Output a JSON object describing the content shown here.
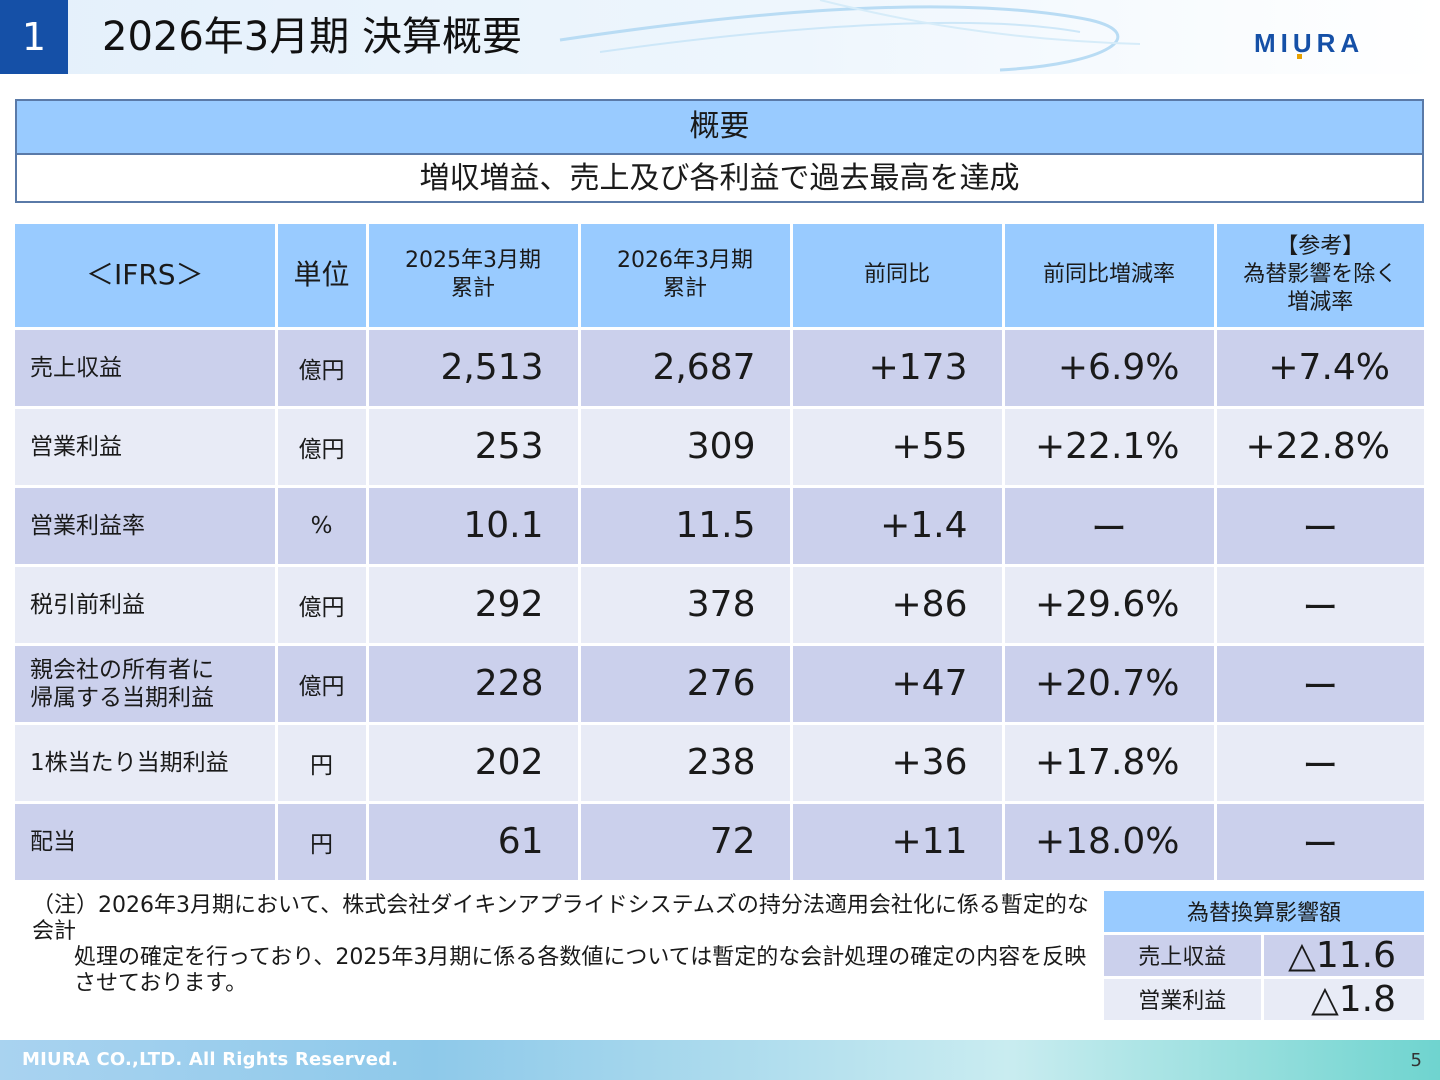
{
  "header": {
    "section_number": "1",
    "title": "2026年3月期  決算概要",
    "logo_text": "MIURA",
    "brand_color": "#1550a7"
  },
  "summary": {
    "heading": "概要",
    "text": "増収増益、売上及び各利益で過去最高を達成"
  },
  "results_table": {
    "columns": [
      "＜IFRS＞",
      "単位",
      [
        "2025年3月期",
        "累計"
      ],
      [
        "2026年3月期",
        "累計"
      ],
      "前同比",
      "前同比増減率",
      [
        "【参考】",
        "為替影響を除く",
        "増減率"
      ]
    ],
    "rows": [
      {
        "item": [
          "売上収益"
        ],
        "unit": "億円",
        "prev": "2,513",
        "curr": "2,687",
        "diff": "+173",
        "rate": "+6.9%",
        "fx_rate": "+7.4%"
      },
      {
        "item": [
          "営業利益"
        ],
        "unit": "億円",
        "prev": "253",
        "curr": "309",
        "diff": "+55",
        "rate": "+22.1%",
        "fx_rate": "+22.8%"
      },
      {
        "item": [
          "営業利益率"
        ],
        "unit": "%",
        "prev": "10.1",
        "curr": "11.5",
        "diff": "+1.4",
        "rate": "ー",
        "fx_rate": "ー"
      },
      {
        "item": [
          "税引前利益"
        ],
        "unit": "億円",
        "prev": "292",
        "curr": "378",
        "diff": "+86",
        "rate": "+29.6%",
        "fx_rate": "ー"
      },
      {
        "item": [
          "親会社の所有者に",
          "帰属する当期利益"
        ],
        "unit": "億円",
        "prev": "228",
        "curr": "276",
        "diff": "+47",
        "rate": "+20.7%",
        "fx_rate": "ー"
      },
      {
        "item": [
          "1株当たり当期利益"
        ],
        "unit": "円",
        "prev": "202",
        "curr": "238",
        "diff": "+36",
        "rate": "+17.8%",
        "fx_rate": "ー"
      },
      {
        "item": [
          "配当"
        ],
        "unit": "円",
        "prev": "61",
        "curr": "72",
        "diff": "+11",
        "rate": "+18.0%",
        "fx_rate": "ー"
      }
    ]
  },
  "note": {
    "lines": [
      "（注）2026年3月期において、株式会社ダイキンアプライドシステムズの持分法適用会社化に係る暫定的な会計",
      "処理の確定を行っており、2025年3月期に係る各数値については暫定的な会計処理の確定の内容を反映",
      "させております。"
    ]
  },
  "fx_impact": {
    "heading": "為替換算影響額",
    "rows": [
      {
        "label": "売上収益",
        "value": "△11.6"
      },
      {
        "label": "営業利益",
        "value": "△1.8"
      }
    ]
  },
  "footer": {
    "copyright": "MIURA CO.,LTD.    All Rights Reserved.",
    "page_number": "5"
  }
}
